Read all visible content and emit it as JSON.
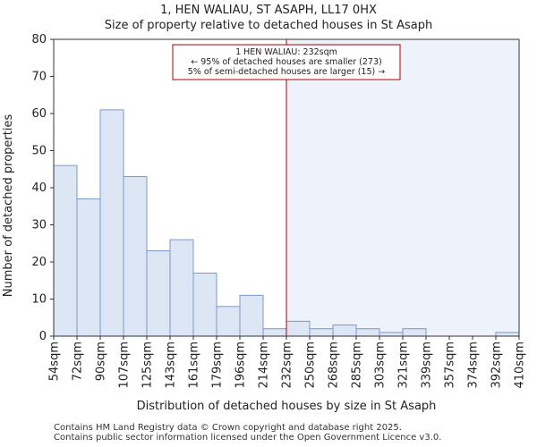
{
  "chart_data": {
    "type": "bar",
    "title_line1": "1, HEN WALIAU, ST ASAPH, LL17 0HX",
    "title_line2": "Size of property relative to detached houses in St Asaph",
    "xlabel": "Distribution of detached houses by size in St Asaph",
    "ylabel": "Number of detached properties",
    "ylim": [
      0,
      80
    ],
    "yticks": [
      0,
      10,
      20,
      30,
      40,
      50,
      60,
      70,
      80
    ],
    "bin_edges": [
      54,
      72,
      90,
      107,
      125,
      143,
      161,
      179,
      196,
      214,
      232,
      250,
      268,
      285,
      303,
      321,
      339,
      357,
      374,
      392,
      410
    ],
    "tick_labels": [
      "54sqm",
      "72sqm",
      "90sqm",
      "107sqm",
      "125sqm",
      "143sqm",
      "161sqm",
      "179sqm",
      "196sqm",
      "214sqm",
      "232sqm",
      "250sqm",
      "268sqm",
      "285sqm",
      "303sqm",
      "321sqm",
      "339sqm",
      "357sqm",
      "374sqm",
      "392sqm",
      "410sqm"
    ],
    "values": [
      46,
      37,
      61,
      43,
      23,
      26,
      17,
      8,
      11,
      2,
      4,
      2,
      3,
      2,
      1,
      2,
      0,
      0,
      0,
      1
    ],
    "marker_value": 232,
    "annotation": [
      "1 HEN WALIAU: 232sqm",
      "← 95% of detached houses are smaller (273)",
      "5% of semi-detached houses are larger (15) →"
    ],
    "colors": {
      "bar_fill": "#dce6f4",
      "bar_stroke": "#7a99c9",
      "highlight_region": "#eef2fa",
      "marker_line": "#aa0000"
    }
  },
  "footer": {
    "line1": "Contains HM Land Registry data © Crown copyright and database right 2025.",
    "line2": "Contains public sector information licensed under the Open Government Licence v3.0."
  }
}
